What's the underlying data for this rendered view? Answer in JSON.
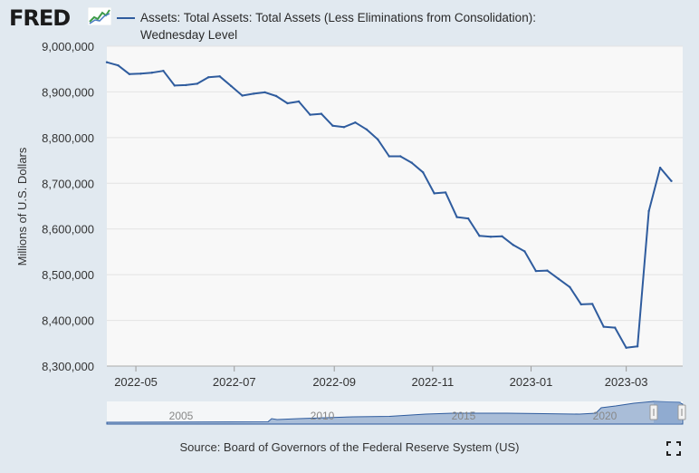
{
  "header": {
    "logo_text": "FRED",
    "series_title_line1": "Assets: Total Assets: Total Assets (Less Eliminations from Consolidation):",
    "series_title_line2": "Wednesday Level"
  },
  "footer": {
    "source": "Source: Board of Governors of the Federal Reserve System (US)"
  },
  "colors": {
    "line": "#2f5c9e",
    "plot_background": "#f8f8f8",
    "page_background": "#e1e9f0",
    "navigator_fill": "#a9bdd8",
    "navigator_selection": "#7b9ccb"
  },
  "chart_data": {
    "type": "line",
    "title": "Assets: Total Assets: Total Assets (Less Eliminations from Consolidation): Wednesday Level",
    "xlabel": "",
    "ylabel": "Millions of U.S. Dollars",
    "ylim": [
      8300000,
      9000000
    ],
    "yticks": [
      8300000,
      8400000,
      8500000,
      8600000,
      8700000,
      8800000,
      8900000,
      9000000
    ],
    "ytick_labels": [
      "8,300,000",
      "8,400,000",
      "8,500,000",
      "8,600,000",
      "8,700,000",
      "8,800,000",
      "8,900,000",
      "9,000,000"
    ],
    "xlim": [
      "2022-04-13",
      "2023-04-05"
    ],
    "xticks": [
      "2022-05-01",
      "2022-07-01",
      "2022-09-01",
      "2022-11-01",
      "2023-01-01",
      "2023-03-01"
    ],
    "xtick_labels": [
      "2022-05",
      "2022-07",
      "2022-09",
      "2022-11",
      "2023-01",
      "2023-03"
    ],
    "grid": true,
    "series": [
      {
        "x": [
          "2022-04-13",
          "2022-04-20",
          "2022-04-27",
          "2022-05-04",
          "2022-05-11",
          "2022-05-18",
          "2022-05-25",
          "2022-06-01",
          "2022-06-08",
          "2022-06-15",
          "2022-06-22",
          "2022-06-29",
          "2022-07-06",
          "2022-07-13",
          "2022-07-20",
          "2022-07-27",
          "2022-08-03",
          "2022-08-10",
          "2022-08-17",
          "2022-08-24",
          "2022-08-31",
          "2022-09-07",
          "2022-09-14",
          "2022-09-21",
          "2022-09-28",
          "2022-10-05",
          "2022-10-12",
          "2022-10-19",
          "2022-10-26",
          "2022-11-02",
          "2022-11-09",
          "2022-11-16",
          "2022-11-23",
          "2022-11-30",
          "2022-12-07",
          "2022-12-14",
          "2022-12-21",
          "2022-12-28",
          "2023-01-04",
          "2023-01-11",
          "2023-01-18",
          "2023-01-25",
          "2023-02-01",
          "2023-02-08",
          "2023-02-15",
          "2023-02-22",
          "2023-03-01",
          "2023-03-08",
          "2023-03-15",
          "2023-03-22",
          "2023-03-29"
        ],
        "values": [
          8965000,
          8958000,
          8939000,
          8940000,
          8942000,
          8946000,
          8914000,
          8915000,
          8918000,
          8932000,
          8934000,
          8913000,
          8892000,
          8896000,
          8899000,
          8891000,
          8875000,
          8879000,
          8850000,
          8852000,
          8826000,
          8823000,
          8833000,
          8818000,
          8796000,
          8759000,
          8759000,
          8745000,
          8724000,
          8678000,
          8680000,
          8626000,
          8623000,
          8585000,
          8583000,
          8584000,
          8565000,
          8551000,
          8508000,
          8509000,
          8491000,
          8473000,
          8435000,
          8436000,
          8386000,
          8384000,
          8340000,
          8343000,
          8639000,
          8734000,
          8705000
        ]
      }
    ],
    "navigator": {
      "labels": [
        "2005",
        "2010",
        "2015",
        "2020"
      ]
    }
  }
}
